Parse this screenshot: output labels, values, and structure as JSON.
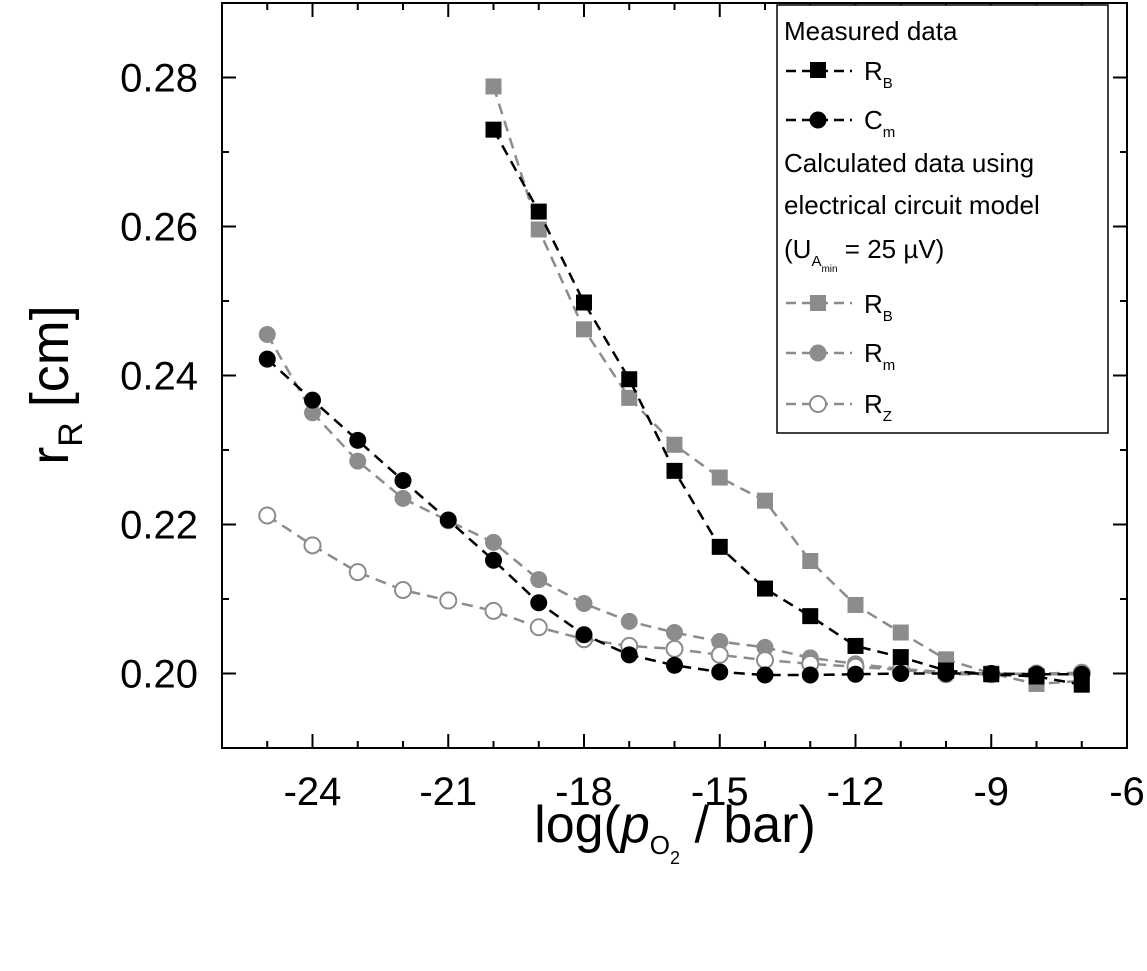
{
  "chart_data": {
    "type": "line",
    "ylabel": {
      "main": "r",
      "sub": "R",
      "unit": "[cm]"
    },
    "xlabel": {
      "prefix": "log(",
      "italic": "p",
      "sub": "O",
      "subsub": "2",
      "suffix": " / bar)"
    },
    "xlim": [
      -26,
      -6
    ],
    "ylim": [
      0.19,
      0.29
    ],
    "xticks": [
      -24,
      -21,
      -18,
      -15,
      -12,
      -9,
      -6
    ],
    "xtick_labels": [
      "-24",
      "-21",
      "-18",
      "-15",
      "-12",
      "-9",
      "-6"
    ],
    "yticks": [
      0.2,
      0.22,
      0.24,
      0.26,
      0.28
    ],
    "ytick_labels": [
      "0.20",
      "0.22",
      "0.24",
      "0.26",
      "0.28"
    ],
    "legend": {
      "position": "top-right",
      "measured_title": "Measured data",
      "calc_title_line1": "Calculated data using",
      "calc_title_line2": "electrical circuit model",
      "calc_title_line3_prefix": "(U",
      "calc_title_line3_sub": "A",
      "calc_title_line3_subsub": "min",
      "calc_title_line3_suffix": " = 25 µV)",
      "entries": [
        {
          "main": "R",
          "sub": "B"
        },
        {
          "main": "C",
          "sub": "m"
        },
        {
          "main": "R",
          "sub": "B"
        },
        {
          "main": "R",
          "sub": "m"
        },
        {
          "main": "R",
          "sub": "Z"
        }
      ]
    },
    "series": [
      {
        "name": "Measured R_B",
        "marker": "square",
        "fill": "#000000",
        "stroke": "#000000",
        "line": "#000000",
        "x": [
          -20,
          -19,
          -18,
          -17,
          -16,
          -15,
          -14,
          -13,
          -12,
          -11,
          -10,
          -9,
          -8,
          -7
        ],
        "y": [
          0.273,
          0.262,
          0.2498,
          0.2395,
          0.2272,
          0.217,
          0.2114,
          0.2077,
          0.2037,
          0.2022,
          0.2004,
          0.1999,
          0.1996,
          0.1985
        ]
      },
      {
        "name": "Measured C_m",
        "marker": "circle",
        "fill": "#000000",
        "stroke": "#000000",
        "line": "#000000",
        "x": [
          -25,
          -24,
          -23,
          -22,
          -21,
          -20,
          -19,
          -18,
          -17,
          -16,
          -15,
          -14,
          -13,
          -12,
          -11,
          -10,
          -9,
          -8,
          -7
        ],
        "y": [
          0.2422,
          0.2367,
          0.2313,
          0.2259,
          0.2206,
          0.2152,
          0.2095,
          0.2052,
          0.2025,
          0.2011,
          0.2002,
          0.1998,
          0.1998,
          0.1999,
          0.2,
          0.2,
          0.2,
          0.1999,
          0.1999
        ]
      },
      {
        "name": "Calculated R_B",
        "marker": "square",
        "fill": "#8c8c8c",
        "stroke": "#8c8c8c",
        "line": "#8c8c8c",
        "x": [
          -20,
          -19,
          -18,
          -17,
          -16,
          -15,
          -14,
          -13,
          -12,
          -11,
          -10,
          -9,
          -8,
          -7
        ],
        "y": [
          0.2788,
          0.2596,
          0.2462,
          0.237,
          0.2307,
          0.2263,
          0.2232,
          0.2151,
          0.2092,
          0.2055,
          0.2019,
          0.2,
          0.1986,
          0.199
        ]
      },
      {
        "name": "Calculated R_m",
        "marker": "circle",
        "fill": "#8c8c8c",
        "stroke": "#8c8c8c",
        "line": "#8c8c8c",
        "x": [
          -25,
          -24,
          -23,
          -22,
          -21,
          -20,
          -19,
          -18,
          -17,
          -16,
          -15,
          -14,
          -13,
          -12,
          -11,
          -10,
          -9,
          -8,
          -7
        ],
        "y": [
          0.2455,
          0.235,
          0.2285,
          0.2235,
          0.2205,
          0.2176,
          0.2126,
          0.2094,
          0.207,
          0.2055,
          0.2043,
          0.2035,
          0.2021,
          0.2013,
          0.2006,
          0.2002,
          0.2,
          0.1999,
          0.1999
        ]
      },
      {
        "name": "Calculated R_Z",
        "marker": "open-circle",
        "fill": "#ffffff",
        "stroke": "#8c8c8c",
        "line": "#8c8c8c",
        "x": [
          -25,
          -24,
          -23,
          -22,
          -21,
          -20,
          -19,
          -18,
          -17,
          -16,
          -15,
          -14,
          -13,
          -12,
          -11,
          -10,
          -9,
          -8,
          -7
        ],
        "y": [
          0.2212,
          0.2172,
          0.2136,
          0.2112,
          0.2098,
          0.2084,
          0.2062,
          0.2046,
          0.2037,
          0.2033,
          0.2025,
          0.2018,
          0.2013,
          0.2009,
          0.2005,
          0.1999,
          0.1999,
          0.2,
          0.2001
        ]
      }
    ]
  }
}
